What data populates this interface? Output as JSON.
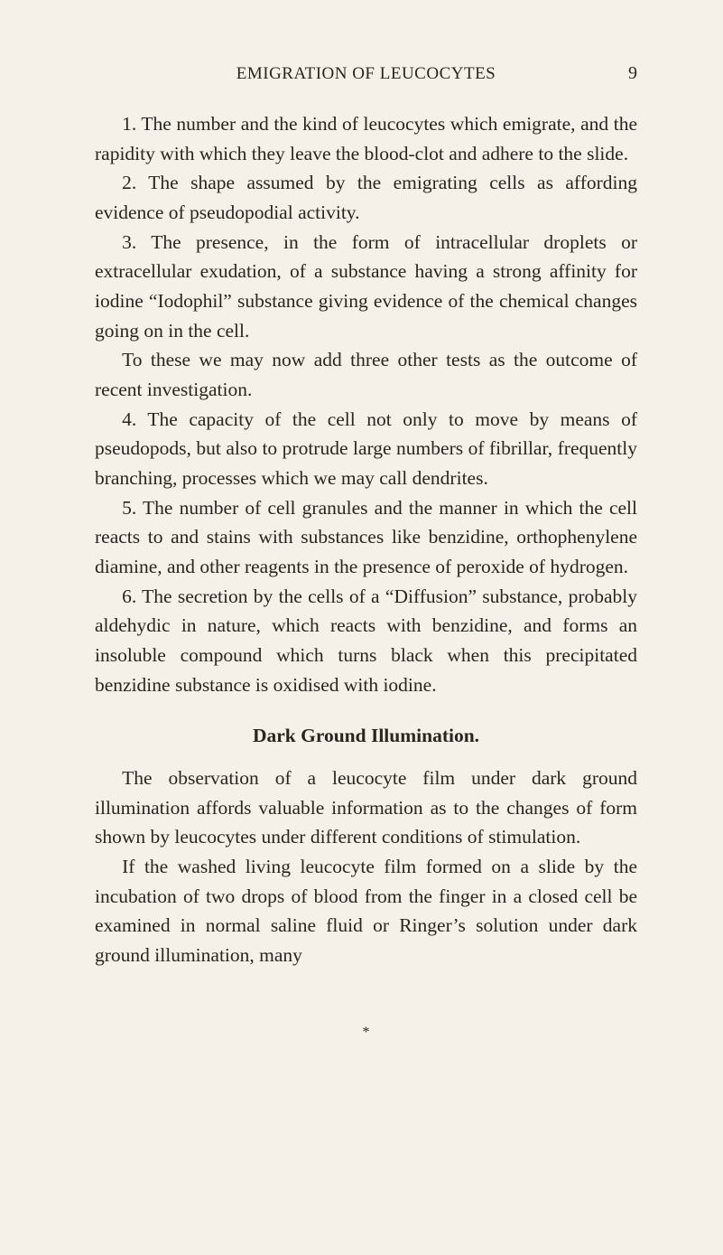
{
  "header": {
    "running_title": "EMIGRATION OF LEUCOCYTES",
    "page_number": "9"
  },
  "paragraphs": {
    "p1": "1. The number and the kind of leucocytes which emigrate, and the rapidity with which they leave the blood-clot and adhere to the slide.",
    "p2": "2. The shape assumed by the emigrating cells as affording evidence of pseudopodial activity.",
    "p3": "3. The presence, in the form of intracellular droplets or extracellular exudation, of a substance having a strong affinity for iodine “Iodophil” substance giving evidence of the chemical changes going on in the cell.",
    "p4": "To these we may now add three other tests as the outcome of recent investigation.",
    "p5": "4. The capacity of the cell not only to move by means of pseudopods, but also to protrude large numbers of fibrillar, frequently branching, processes which we may call dendrites.",
    "p6": "5. The number of cell granules and the manner in which the cell reacts to and stains with substances like benzidine, orthophenylene diamine, and other reagents in the presence of peroxide of hydrogen.",
    "p7": "6. The secretion by the cells of a “Diffusion” sub­stance, probably aldehydic in nature, which reacts with benzidine, and forms an insoluble compound which turns black when this precipitated benzidine substance is oxidised with iodine.",
    "heading": "Dark Ground Illumination.",
    "p8": "The observation of a leucocyte film under dark ground illumination affords valuable information as to the changes of form shown by leucocytes under different conditions of stimulation.",
    "p9": "If the washed living leucocyte film formed on a slide by the incubation of two drops of blood from the finger in a closed cell be examined in normal saline fluid or Ringer’s solution under dark ground illumination, many"
  },
  "foot_mark": "*"
}
